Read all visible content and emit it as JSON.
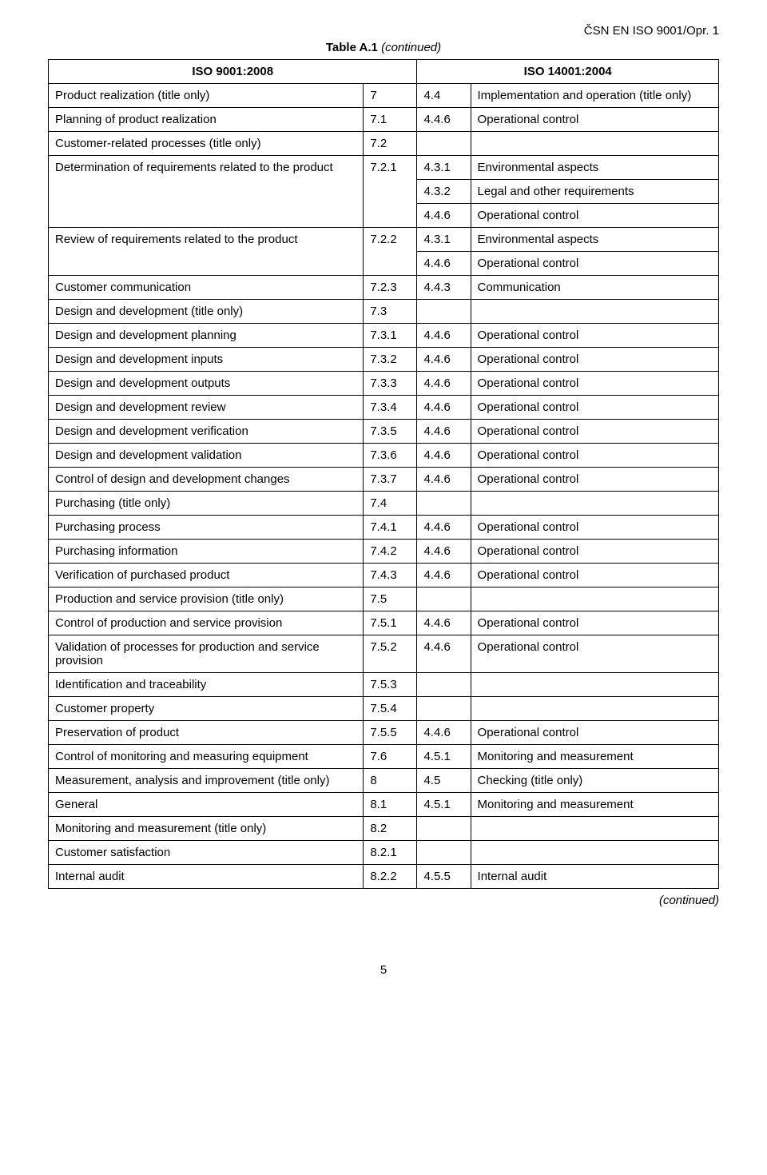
{
  "doc_id": "ČSN EN ISO 9001/Opr. 1",
  "caption_bold": "Table A.1",
  "caption_ital": " (continued)",
  "header_left": "ISO 9001:2008",
  "header_right": "ISO 14001:2004",
  "continued": "(continued)",
  "page_number": "5",
  "rows": [
    {
      "c1": "Product realization (title only)",
      "c2": "7",
      "c3": "4.4",
      "c4": "Implementation and operation (title only)"
    },
    {
      "c1": "Planning of product realization",
      "c2": "7.1",
      "c3": "4.4.6",
      "c4": "Operational control"
    },
    {
      "c1": "Customer-related processes (title only)",
      "c2": "7.2",
      "c3": "",
      "c4": ""
    },
    {
      "c1": "Determination of requirements related to the product",
      "c2": "7.2.1",
      "c3": "4.3.1",
      "c4": "Environmental aspects",
      "merge": "start",
      "sub": 2
    },
    {
      "c3": "4.3.2",
      "c4": "Legal and other requirements",
      "merge": "mid"
    },
    {
      "c3": "4.4.6",
      "c4": "Operational control",
      "merge": "end"
    },
    {
      "c1": "Review of requirements related to the product",
      "c2": "7.2.2",
      "c3": "4.3.1",
      "c4": "Environmental aspects",
      "merge": "start",
      "sub": 1
    },
    {
      "c3": "4.4.6",
      "c4": "Operational control",
      "merge": "end"
    },
    {
      "c1": "Customer communication",
      "c2": "7.2.3",
      "c3": "4.4.3",
      "c4": "Communication"
    },
    {
      "c1": "Design and development (title only)",
      "c2": "7.3",
      "c3": "",
      "c4": ""
    },
    {
      "c1": "Design and development planning",
      "c2": "7.3.1",
      "c3": "4.4.6",
      "c4": "Operational control"
    },
    {
      "c1": "Design and development inputs",
      "c2": "7.3.2",
      "c3": "4.4.6",
      "c4": "Operational control"
    },
    {
      "c1": "Design and development outputs",
      "c2": "7.3.3",
      "c3": "4.4.6",
      "c4": "Operational control"
    },
    {
      "c1": "Design and development review",
      "c2": "7.3.4",
      "c3": "4.4.6",
      "c4": "Operational control"
    },
    {
      "c1": "Design and development verification",
      "c2": "7.3.5",
      "c3": "4.4.6",
      "c4": "Operational control"
    },
    {
      "c1": "Design and development validation",
      "c2": "7.3.6",
      "c3": "4.4.6",
      "c4": "Operational control"
    },
    {
      "c1": "Control of design and development changes",
      "c2": "7.3.7",
      "c3": "4.4.6",
      "c4": "Operational control"
    },
    {
      "c1": "Purchasing (title only)",
      "c2": "7.4",
      "c3": "",
      "c4": ""
    },
    {
      "c1": "Purchasing process",
      "c2": "7.4.1",
      "c3": "4.4.6",
      "c4": "Operational control"
    },
    {
      "c1": "Purchasing information",
      "c2": "7.4.2",
      "c3": "4.4.6",
      "c4": "Operational control"
    },
    {
      "c1": "Verification of purchased product",
      "c2": "7.4.3",
      "c3": "4.4.6",
      "c4": "Operational control"
    },
    {
      "c1": "Production and service provision (title only)",
      "c2": "7.5",
      "c3": "",
      "c4": ""
    },
    {
      "c1": "Control of production and service provision",
      "c2": "7.5.1",
      "c3": "4.4.6",
      "c4": "Operational control"
    },
    {
      "c1": "Validation of processes for production and service provision",
      "c2": "7.5.2",
      "c3": "4.4.6",
      "c4": "Operational control"
    },
    {
      "c1": "Identification and traceability",
      "c2": "7.5.3",
      "c3": "",
      "c4": ""
    },
    {
      "c1": "Customer property",
      "c2": "7.5.4",
      "c3": "",
      "c4": ""
    },
    {
      "c1": "Preservation of product",
      "c2": "7.5.5",
      "c3": "4.4.6",
      "c4": "Operational control"
    },
    {
      "c1": "Control of monitoring and measuring equipment",
      "c2": "7.6",
      "c3": "4.5.1",
      "c4": "Monitoring and measurement"
    },
    {
      "c1": "Measurement, analysis and improvement (title only)",
      "c2": "8",
      "c3": "4.5",
      "c4": "Checking (title only)"
    },
    {
      "c1": "General",
      "c2": "8.1",
      "c3": "4.5.1",
      "c4": "Monitoring and measurement"
    },
    {
      "c1": "Monitoring and measurement (title only)",
      "c2": "8.2",
      "c3": "",
      "c4": ""
    },
    {
      "c1": "Customer satisfaction",
      "c2": "8.2.1",
      "c3": "",
      "c4": ""
    },
    {
      "c1": "Internal audit",
      "c2": "8.2.2",
      "c3": "4.5.5",
      "c4": "Internal audit"
    }
  ]
}
